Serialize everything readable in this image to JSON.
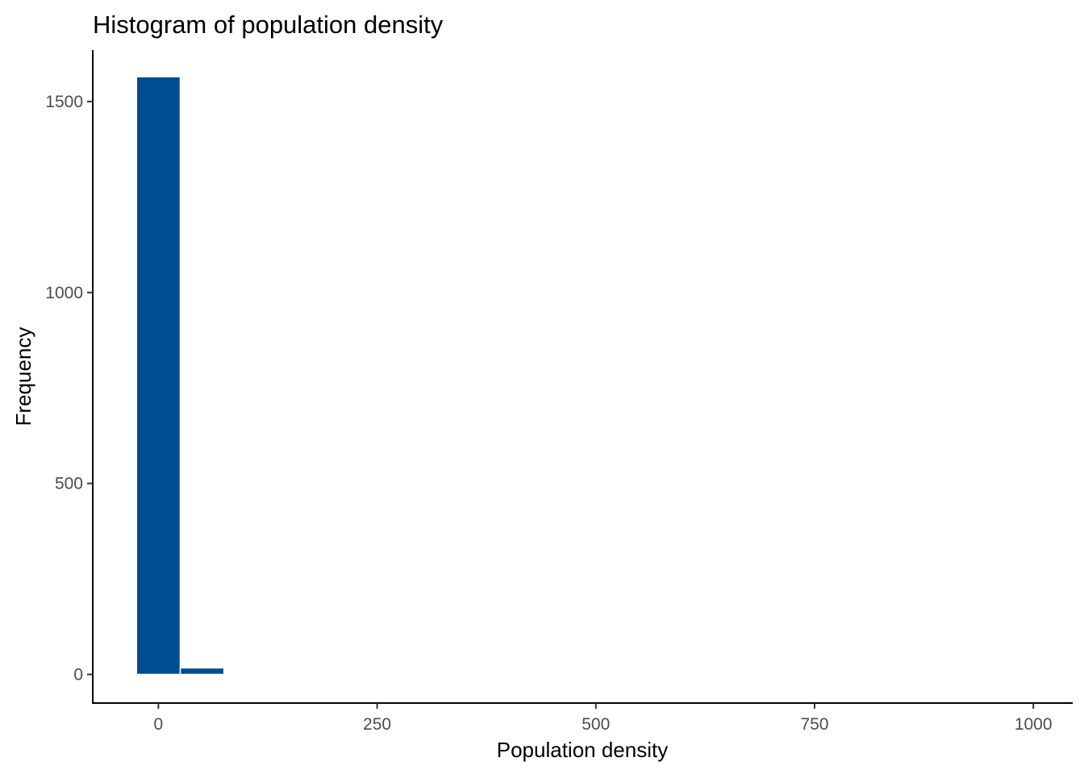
{
  "chart_data": {
    "type": "bar",
    "subtype": "histogram",
    "title": "Histogram of population density",
    "xlabel": "Population density",
    "ylabel": "Frequency",
    "xlim": [
      -75,
      1045
    ],
    "ylim": [
      -75,
      1635
    ],
    "x_ticks": [
      0,
      250,
      500,
      750,
      1000
    ],
    "x_tick_labels": [
      "0",
      "250",
      "500",
      "750",
      "1000"
    ],
    "y_ticks": [
      0,
      500,
      1000,
      1500
    ],
    "y_tick_labels": [
      "0",
      "500",
      "1000",
      "1500"
    ],
    "bin_width": 50,
    "bins": [
      {
        "x0": -25,
        "x1": 25,
        "count": 1565
      },
      {
        "x0": 25,
        "x1": 75,
        "count": 17
      }
    ],
    "grid": false,
    "bar_color": "#004C92",
    "bar_outline_color": "#ffffff"
  }
}
